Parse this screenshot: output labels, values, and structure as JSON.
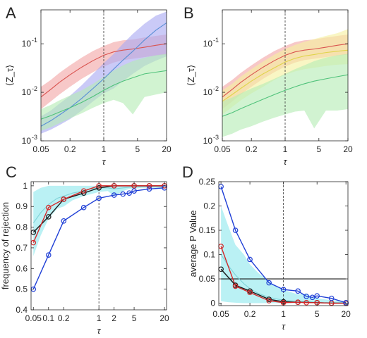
{
  "chart_data": [
    {
      "panel": "A",
      "type": "line",
      "xlabel": "τ",
      "ylabel": "⟨Z_τ⟩",
      "xscale": "log",
      "yscale": "log",
      "xlim": [
        0.05,
        20
      ],
      "ylim": [
        0.001,
        0.5
      ],
      "xticks": [
        {
          "v": 0.05,
          "label": "0.05"
        },
        {
          "v": 0.2,
          "label": "0.2"
        },
        {
          "v": 1,
          "label": "1"
        },
        {
          "v": 5,
          "label": "5"
        },
        {
          "v": 20,
          "label": "20"
        }
      ],
      "yticks": [
        {
          "v": 0.001,
          "label": "10",
          "exp": "-3"
        },
        {
          "v": 0.01,
          "label": "10",
          "exp": "-2"
        },
        {
          "v": 0.1,
          "label": "10",
          "exp": "-1"
        }
      ],
      "vline": 1,
      "hline": null,
      "series": [
        {
          "color": "#d9534f",
          "band_color": "#f2a6a6",
          "x": [
            0.05,
            0.08,
            0.12,
            0.2,
            0.35,
            0.6,
            1,
            1.6,
            2.5,
            4,
            7,
            12,
            20
          ],
          "y": [
            0.008,
            0.0115,
            0.016,
            0.023,
            0.033,
            0.045,
            0.058,
            0.068,
            0.074,
            0.078,
            0.085,
            0.093,
            0.1
          ],
          "lo": [
            0.0045,
            0.0065,
            0.009,
            0.013,
            0.019,
            0.026,
            0.034,
            0.041,
            0.046,
            0.049,
            0.053,
            0.057,
            0.06
          ],
          "hi": [
            0.013,
            0.018,
            0.025,
            0.036,
            0.052,
            0.071,
            0.09,
            0.108,
            0.118,
            0.123,
            0.135,
            0.145,
            0.155
          ]
        },
        {
          "color": "#5a8fd6",
          "band_color": "#a9a9f2",
          "x": [
            0.05,
            0.08,
            0.12,
            0.2,
            0.35,
            0.6,
            1,
            1.6,
            2.5,
            4,
            7,
            12,
            20
          ],
          "y": [
            0.002,
            0.0026,
            0.0034,
            0.0048,
            0.0075,
            0.012,
            0.019,
            0.03,
            0.046,
            0.07,
            0.12,
            0.19,
            0.27
          ],
          "lo": [
            0.0014,
            0.0017,
            0.0021,
            0.0028,
            0.0042,
            0.0065,
            0.0095,
            0.012,
            0.017,
            0.024,
            0.035,
            0.045,
            0.055
          ],
          "hi": [
            0.0032,
            0.0042,
            0.0058,
            0.0085,
            0.014,
            0.024,
            0.04,
            0.062,
            0.1,
            0.16,
            0.26,
            0.38,
            0.46
          ]
        },
        {
          "color": "#4fc27a",
          "band_color": "#b5ecb5",
          "x": [
            0.05,
            0.08,
            0.12,
            0.2,
            0.35,
            0.6,
            1,
            1.6,
            2.5,
            4,
            7,
            12,
            20
          ],
          "y": [
            0.0028,
            0.0033,
            0.0039,
            0.0048,
            0.0062,
            0.0082,
            0.011,
            0.014,
            0.017,
            0.02,
            0.024,
            0.026,
            0.028
          ],
          "lo": [
            0.0016,
            0.0019,
            0.0023,
            0.0029,
            0.0037,
            0.0048,
            0.006,
            0.007,
            0.006,
            0.0035,
            0.008,
            0.009,
            0.01
          ],
          "hi": [
            0.0045,
            0.0055,
            0.0068,
            0.0086,
            0.011,
            0.015,
            0.021,
            0.028,
            0.036,
            0.044,
            0.052,
            0.058,
            0.062
          ]
        }
      ]
    },
    {
      "panel": "B",
      "type": "line",
      "xlabel": "τ",
      "ylabel": "⟨Z_τ⟩",
      "xscale": "log",
      "yscale": "log",
      "xlim": [
        0.05,
        20
      ],
      "ylim": [
        0.001,
        0.5
      ],
      "xticks": [
        {
          "v": 0.05,
          "label": "0.05"
        },
        {
          "v": 0.2,
          "label": "0.2"
        },
        {
          "v": 1,
          "label": "1"
        },
        {
          "v": 5,
          "label": "5"
        },
        {
          "v": 20,
          "label": "20"
        }
      ],
      "yticks": [
        {
          "v": 0.001,
          "label": "10",
          "exp": "-3"
        },
        {
          "v": 0.01,
          "label": "10",
          "exp": "-2"
        },
        {
          "v": 0.1,
          "label": "10",
          "exp": "-1"
        }
      ],
      "vline": 1,
      "hline": null,
      "series": [
        {
          "color": "#d9534f",
          "band_color": "#f2a6a6",
          "x": [
            0.05,
            0.08,
            0.12,
            0.2,
            0.35,
            0.6,
            1,
            1.6,
            2.5,
            4,
            7,
            12,
            20
          ],
          "y": [
            0.008,
            0.0115,
            0.016,
            0.023,
            0.033,
            0.045,
            0.058,
            0.068,
            0.074,
            0.078,
            0.085,
            0.093,
            0.1
          ],
          "lo": [
            0.0045,
            0.0065,
            0.009,
            0.013,
            0.019,
            0.026,
            0.034,
            0.041,
            0.046,
            0.049,
            0.053,
            0.057,
            0.06
          ],
          "hi": [
            0.013,
            0.018,
            0.025,
            0.036,
            0.052,
            0.071,
            0.09,
            0.108,
            0.118,
            0.123,
            0.135,
            0.145,
            0.155
          ]
        },
        {
          "color": "#e0d44a",
          "band_color": "#f5f0a0",
          "x": [
            0.05,
            0.08,
            0.12,
            0.2,
            0.35,
            0.6,
            1,
            1.6,
            2.5,
            4,
            7,
            12,
            20
          ],
          "y": [
            0.0065,
            0.009,
            0.012,
            0.017,
            0.024,
            0.032,
            0.042,
            0.05,
            0.056,
            0.06,
            0.066,
            0.07,
            0.074
          ],
          "lo": [
            0.0035,
            0.005,
            0.0068,
            0.0095,
            0.013,
            0.018,
            0.023,
            0.027,
            0.03,
            0.032,
            0.035,
            0.037,
            0.038
          ],
          "hi": [
            0.011,
            0.015,
            0.021,
            0.03,
            0.043,
            0.06,
            0.078,
            0.095,
            0.11,
            0.125,
            0.145,
            0.165,
            0.2
          ]
        },
        {
          "color": "#4fc27a",
          "band_color": "#b5ecb5",
          "x": [
            0.05,
            0.08,
            0.12,
            0.2,
            0.35,
            0.6,
            1,
            1.6,
            2.5,
            4,
            7,
            12,
            20
          ],
          "y": [
            0.0032,
            0.0038,
            0.0046,
            0.0057,
            0.0072,
            0.009,
            0.011,
            0.013,
            0.015,
            0.017,
            0.019,
            0.021,
            0.023
          ],
          "lo": [
            0.0012,
            0.0014,
            0.0017,
            0.002,
            0.0025,
            0.003,
            0.0035,
            0.004,
            0.0042,
            0.0018,
            0.0042,
            0.0042,
            0.0045
          ],
          "hi": [
            0.0065,
            0.0078,
            0.0095,
            0.012,
            0.015,
            0.019,
            0.024,
            0.03,
            0.036,
            0.044,
            0.052,
            0.058,
            0.062
          ]
        }
      ]
    },
    {
      "panel": "C",
      "type": "line",
      "xlabel": "τ",
      "ylabel": "frequency of rejection",
      "xscale": "log",
      "yscale": "linear",
      "xlim": [
        0.045,
        22
      ],
      "ylim": [
        0.4,
        1.02
      ],
      "xticks": [
        {
          "v": 0.05,
          "label": "0.05"
        },
        {
          "v": 0.1,
          "label": "0.1"
        },
        {
          "v": 0.2,
          "label": "0.2"
        },
        {
          "v": 1,
          "label": "1"
        },
        {
          "v": 2,
          "label": "2"
        },
        {
          "v": 5,
          "label": "5"
        },
        {
          "v": 20,
          "label": "20"
        }
      ],
      "yticks": [
        {
          "v": 0.4,
          "label": "0.4"
        },
        {
          "v": 0.5,
          "label": "0.5"
        },
        {
          "v": 0.6,
          "label": "0.6"
        },
        {
          "v": 0.7,
          "label": "0.7"
        },
        {
          "v": 0.8,
          "label": "0.8"
        },
        {
          "v": 0.9,
          "label": "0.9"
        },
        {
          "v": 1,
          "label": "1"
        }
      ],
      "vline": 1,
      "hline": null,
      "band": {
        "color": "#b3f0f3",
        "x": [
          0.05,
          0.07,
          0.1,
          0.15,
          0.2,
          0.3,
          0.5,
          0.7,
          1,
          1.5,
          2,
          3,
          4,
          5,
          7,
          10,
          15,
          20
        ],
        "lo": [
          0.66,
          0.76,
          0.84,
          0.89,
          0.9,
          0.93,
          0.95,
          0.96,
          0.97,
          0.975,
          0.95,
          0.975,
          0.985,
          0.985,
          0.99,
          0.99,
          0.99,
          0.99
        ],
        "hi": [
          0.97,
          0.99,
          1.0,
          1.0,
          1.0,
          1.0,
          1.0,
          1.0,
          1.0,
          1.0,
          1.0,
          1.0,
          1.0,
          1.0,
          1.0,
          1.0,
          1.0,
          1.0
        ]
      },
      "series": [
        {
          "color": "#7fd3d8",
          "marker": "none",
          "x": [
            0.05,
            0.07,
            0.1,
            0.15,
            0.2,
            0.3,
            0.5,
            0.7,
            1,
            1.5,
            2,
            3,
            5,
            10,
            20
          ],
          "y": [
            0.82,
            0.87,
            0.91,
            0.94,
            0.95,
            0.965,
            0.975,
            0.985,
            0.99,
            0.99,
            0.985,
            0.99,
            0.995,
            0.995,
            0.997
          ]
        },
        {
          "color": "#1a1a1a",
          "marker": "circle",
          "x": [
            0.05,
            0.1,
            0.2,
            0.5,
            1,
            2,
            5,
            10,
            20
          ],
          "y": [
            0.775,
            0.85,
            0.935,
            0.965,
            0.99,
            1.0,
            1.0,
            1.0,
            1.0
          ]
        },
        {
          "color": "#d62728",
          "marker": "circle",
          "x": [
            0.05,
            0.1,
            0.2,
            0.5,
            1,
            2,
            5,
            10,
            20
          ],
          "y": [
            0.725,
            0.895,
            0.935,
            0.975,
            1.0,
            1.0,
            1.0,
            1.0,
            1.0
          ]
        },
        {
          "color": "#1f3fd6",
          "marker": "circle",
          "x": [
            0.05,
            0.1,
            0.2,
            0.5,
            1,
            2,
            3,
            4,
            5,
            10,
            20
          ],
          "y": [
            0.5,
            0.665,
            0.83,
            0.895,
            0.94,
            0.955,
            0.96,
            0.965,
            0.975,
            0.985,
            0.99
          ]
        }
      ]
    },
    {
      "panel": "D",
      "type": "line",
      "xlabel": "τ",
      "ylabel": "average P Value",
      "xscale": "log",
      "yscale": "linear",
      "xlim": [
        0.045,
        22
      ],
      "ylim": [
        -0.005,
        0.25
      ],
      "xticks": [
        {
          "v": 0.05,
          "label": "0.05"
        },
        {
          "v": 0.2,
          "label": "0.2"
        },
        {
          "v": 1,
          "label": "1"
        },
        {
          "v": 5,
          "label": "5"
        },
        {
          "v": 20,
          "label": "20"
        }
      ],
      "yticks": [
        {
          "v": 0,
          "label": "0"
        },
        {
          "v": 0.05,
          "label": "0.05"
        },
        {
          "v": 0.1,
          "label": "0.1"
        },
        {
          "v": 0.15,
          "label": "0.15"
        },
        {
          "v": 0.2,
          "label": "0.2"
        },
        {
          "v": 0.25,
          "label": "0.25"
        }
      ],
      "vline": 1,
      "hline": 0.05,
      "band": {
        "color": "#b3f0f3",
        "x": [
          0.05,
          0.07,
          0.1,
          0.15,
          0.2,
          0.3,
          0.5,
          0.7,
          1,
          1.5,
          2,
          3,
          4,
          5,
          7,
          10,
          15,
          20
        ],
        "lo": [
          0.004,
          0.002,
          0.001,
          0.0,
          0.0,
          0.0,
          0.0,
          0.0,
          0.0,
          0.0,
          0.0,
          0.0,
          0.0,
          0.0,
          0.0,
          0.0,
          0.0,
          0.0
        ],
        "hi": [
          0.2,
          0.16,
          0.12,
          0.1,
          0.08,
          0.062,
          0.045,
          0.035,
          0.028,
          0.022,
          0.018,
          0.02,
          0.012,
          0.01,
          0.008,
          0.006,
          0.005,
          0.004
        ]
      },
      "series": [
        {
          "color": "#7fd3d8",
          "marker": "none",
          "x": [
            0.05,
            0.07,
            0.1,
            0.15,
            0.2,
            0.3,
            0.5,
            1,
            2,
            5,
            10,
            20
          ],
          "y": [
            0.1,
            0.078,
            0.058,
            0.04,
            0.03,
            0.02,
            0.012,
            0.006,
            0.004,
            0.002,
            0.001,
            0.001
          ]
        },
        {
          "color": "#1a1a1a",
          "marker": "circle",
          "x": [
            0.05,
            0.1,
            0.2,
            0.5,
            1,
            2,
            5,
            10,
            20
          ],
          "y": [
            0.07,
            0.037,
            0.025,
            0.008,
            0.003,
            0.002,
            0.001,
            0.0,
            0.0
          ]
        },
        {
          "color": "#d62728",
          "marker": "circle",
          "x": [
            0.05,
            0.1,
            0.2,
            0.5,
            1,
            2,
            3,
            5,
            10,
            20
          ],
          "y": [
            0.117,
            0.035,
            0.022,
            0.005,
            0.001,
            0.002,
            0.001,
            0.001,
            0.0,
            0.0
          ]
        },
        {
          "color": "#1f3fd6",
          "marker": "circle",
          "x": [
            0.05,
            0.1,
            0.2,
            0.5,
            1,
            2,
            3,
            4,
            5,
            10,
            20
          ],
          "y": [
            0.24,
            0.15,
            0.09,
            0.042,
            0.028,
            0.025,
            0.014,
            0.012,
            0.015,
            0.01,
            0.001
          ]
        }
      ]
    }
  ]
}
